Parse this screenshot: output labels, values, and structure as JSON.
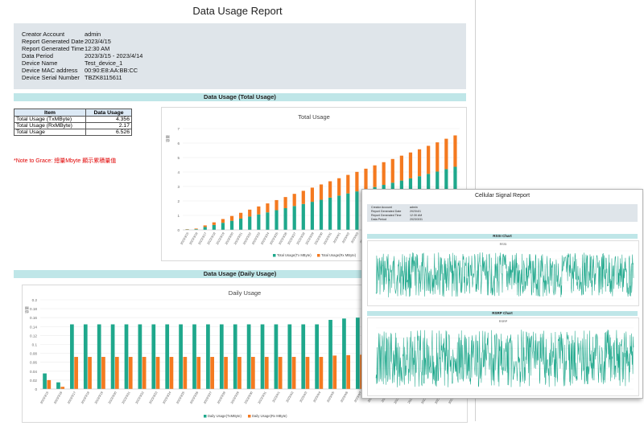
{
  "report": {
    "title": "Data Usage Report",
    "info": [
      {
        "label": "Creator Account",
        "value": "admin"
      },
      {
        "label": "Report Generated Date",
        "value": "2023/4/15"
      },
      {
        "label": "Report Generated Time",
        "value": "12:30 AM"
      },
      {
        "label": "Data Period",
        "value": "2023/3/15 - 2023/4/14"
      },
      {
        "label": "Device Name",
        "value": "Test_device_1"
      },
      {
        "label": "Device MAC address",
        "value": "00:90:E8:AA:BB:CC"
      },
      {
        "label": "Device Serial Number",
        "value": "TBZK8115611"
      }
    ],
    "total_section": "Data Usage (Total Usage)",
    "daily_section": "Data Usage (Daily Usage)",
    "table": {
      "headers": [
        "Item",
        "Data Usage"
      ],
      "rows": [
        {
          "item": "Total Usage (TxMByte)",
          "value": "4.356"
        },
        {
          "item": "Total Usage (RxMByte)",
          "value": "2.17"
        },
        {
          "item": "Total Usage",
          "value": "6.526"
        }
      ]
    },
    "note": "*Note to Grace: 總量Mbyte 顯示累積量值"
  },
  "colors": {
    "tx": "#1fa88c",
    "rx": "#f47a20",
    "section": "#bfe6e8",
    "info_bg": "#dfe5ea"
  },
  "chart_data": [
    {
      "type": "bar",
      "title": "Total Usage",
      "ylabel": "容量",
      "ylim": [
        0,
        7
      ],
      "yticks": [
        0,
        1,
        2,
        3,
        4,
        5,
        6,
        7
      ],
      "categories": [
        "2023/3/15",
        "2023/3/16",
        "2023/3/17",
        "2023/3/18",
        "2023/3/19",
        "2023/3/20",
        "2023/3/21",
        "2023/3/22",
        "2023/3/23",
        "2023/3/24",
        "2023/3/25",
        "2023/3/26",
        "2023/3/27",
        "2023/3/28",
        "2023/3/29",
        "2023/3/30",
        "2023/3/31",
        "2023/4/1",
        "2023/4/2",
        "2023/4/3",
        "2023/4/4",
        "2023/4/5",
        "2023/4/6",
        "2023/4/7",
        "2023/4/8",
        "2023/4/9",
        "2023/4/10",
        "2023/4/11",
        "2023/4/12",
        "2023/4/13",
        "2023/4/14"
      ],
      "series": [
        {
          "name": "Total Usage(Tx MByte)",
          "values": [
            0.03,
            0.05,
            0.2,
            0.34,
            0.49,
            0.63,
            0.78,
            0.92,
            1.07,
            1.21,
            1.36,
            1.5,
            1.65,
            1.79,
            1.94,
            2.08,
            2.23,
            2.37,
            2.52,
            2.66,
            2.81,
            2.96,
            3.11,
            3.26,
            3.41,
            3.56,
            3.71,
            3.87,
            4.03,
            4.2,
            4.36
          ]
        },
        {
          "name": "Total Usage(Rx MByte)",
          "values": [
            0.02,
            0.04,
            0.11,
            0.18,
            0.26,
            0.33,
            0.4,
            0.48,
            0.55,
            0.62,
            0.7,
            0.77,
            0.84,
            0.91,
            0.98,
            1.06,
            1.13,
            1.2,
            1.28,
            1.35,
            1.42,
            1.5,
            1.57,
            1.64,
            1.72,
            1.79,
            1.86,
            1.94,
            2.02,
            2.1,
            2.17
          ]
        }
      ]
    },
    {
      "type": "bar",
      "title": "Daily Usage",
      "ylabel": "容量",
      "ylim": [
        0,
        0.2
      ],
      "yticks": [
        0,
        0.02,
        0.04,
        0.06,
        0.08,
        0.1,
        0.12,
        0.14,
        0.16,
        0.18,
        0.2
      ],
      "categories": [
        "2023/3/15",
        "2023/3/16",
        "2023/3/17",
        "2023/3/18",
        "2023/3/19",
        "2023/3/20",
        "2023/3/21",
        "2023/3/22",
        "2023/3/23",
        "2023/3/24",
        "2023/3/25",
        "2023/3/26",
        "2023/3/27",
        "2023/3/28",
        "2023/3/29",
        "2023/3/30",
        "2023/3/31",
        "2023/4/1",
        "2023/4/2",
        "2023/4/3",
        "2023/4/4",
        "2023/4/5",
        "2023/4/6",
        "2023/4/7",
        "2023/4/8",
        "2023/4/9",
        "2023/4/10",
        "2023/4/11",
        "2023/4/12",
        "2023/4/13",
        "2023/4/14"
      ],
      "series": [
        {
          "name": "Daily Usage(TxMByte)",
          "values": [
            0.035,
            0.015,
            0.145,
            0.145,
            0.145,
            0.145,
            0.145,
            0.145,
            0.145,
            0.145,
            0.145,
            0.145,
            0.145,
            0.145,
            0.145,
            0.145,
            0.145,
            0.145,
            0.145,
            0.145,
            0.145,
            0.155,
            0.158,
            0.16,
            0.162,
            0.164,
            0.166,
            0.168,
            0.17,
            0.172,
            0.175
          ]
        },
        {
          "name": "Daily Usage(Rx MByte)",
          "values": [
            0.02,
            0.005,
            0.072,
            0.072,
            0.072,
            0.072,
            0.072,
            0.072,
            0.072,
            0.072,
            0.072,
            0.072,
            0.072,
            0.072,
            0.072,
            0.072,
            0.072,
            0.072,
            0.072,
            0.072,
            0.072,
            0.075,
            0.076,
            0.077,
            0.078,
            0.08,
            0.081,
            0.082,
            0.083,
            0.084,
            0.085
          ]
        }
      ]
    }
  ],
  "overlay": {
    "title": "Cellular Signal Report",
    "info": [
      {
        "label": "Creator Account",
        "value": "admin"
      },
      {
        "label": "Report Generated Date",
        "value": "2023/4/1"
      },
      {
        "label": "Report Generated Time",
        "value": "12:30 AM"
      },
      {
        "label": "Data Period",
        "value": "2023/3/31"
      }
    ],
    "rssi_section": "RSSI Chart",
    "rssi_chart_title": "RSSI",
    "rsrp_section": "RSRP Chart",
    "rsrp_chart_title": "RSRP"
  }
}
